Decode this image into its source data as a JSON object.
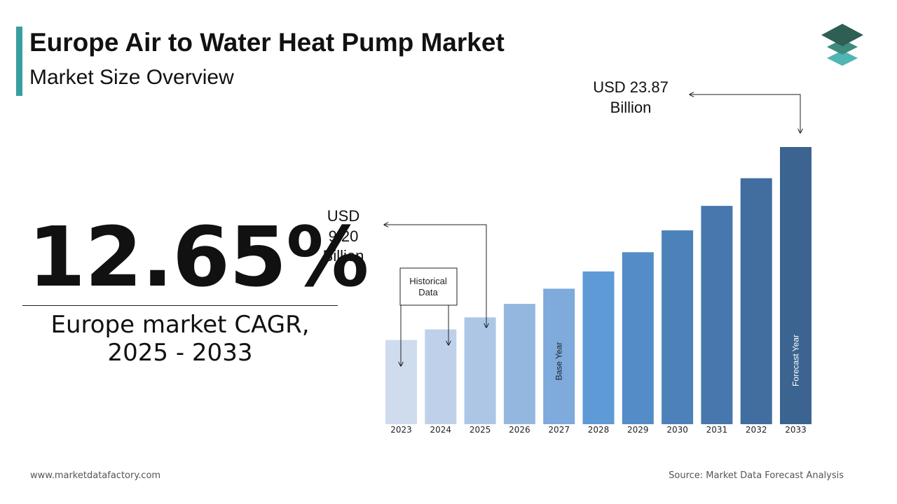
{
  "header": {
    "title": "Europe Air to Water Heat Pump Market",
    "subtitle": "Market Size Overview"
  },
  "cagr": {
    "value": "12.65%",
    "label_line1": "Europe market CAGR,",
    "label_line2": "2025 - 2033"
  },
  "annotations": {
    "start_value": [
      "USD",
      "9.20",
      "Billion"
    ],
    "end_value": [
      "USD 23.87",
      "Billion"
    ],
    "historical_box": [
      "Historical",
      "Data"
    ],
    "base_year_label": "Base Year",
    "forecast_year_label": "Forecast Year"
  },
  "footer": {
    "website": "www.marketdatafactory.com",
    "source": "Source: Market Data Forecast Analysis"
  },
  "colors": {
    "accent": "#3a9ea0",
    "logo_dark": "#2f5e55",
    "logo_mid": "#3e8a7e",
    "logo_light": "#4fb6b3",
    "bars": [
      "#cfdcee",
      "#bfd1ea",
      "#adc6e6",
      "#94b7e0",
      "#7eaadc",
      "#5d9ad6",
      "#548cc7",
      "#4d81ba",
      "#4777ad",
      "#416d9f",
      "#3b6491"
    ]
  },
  "chart_data": {
    "type": "bar",
    "title": "",
    "xlabel": "",
    "ylabel": "",
    "categories": [
      "2023",
      "2024",
      "2025",
      "2026",
      "2027",
      "2028",
      "2029",
      "2030",
      "2031",
      "2032",
      "2033"
    ],
    "values": [
      7.25,
      8.17,
      9.2,
      10.36,
      11.67,
      13.15,
      14.81,
      16.69,
      18.8,
      21.18,
      23.87
    ],
    "ylim": [
      0,
      23.87
    ],
    "grid": false,
    "legend": "none",
    "bar_labels": {
      "2027": "Base Year",
      "2033": "Forecast Year"
    }
  }
}
